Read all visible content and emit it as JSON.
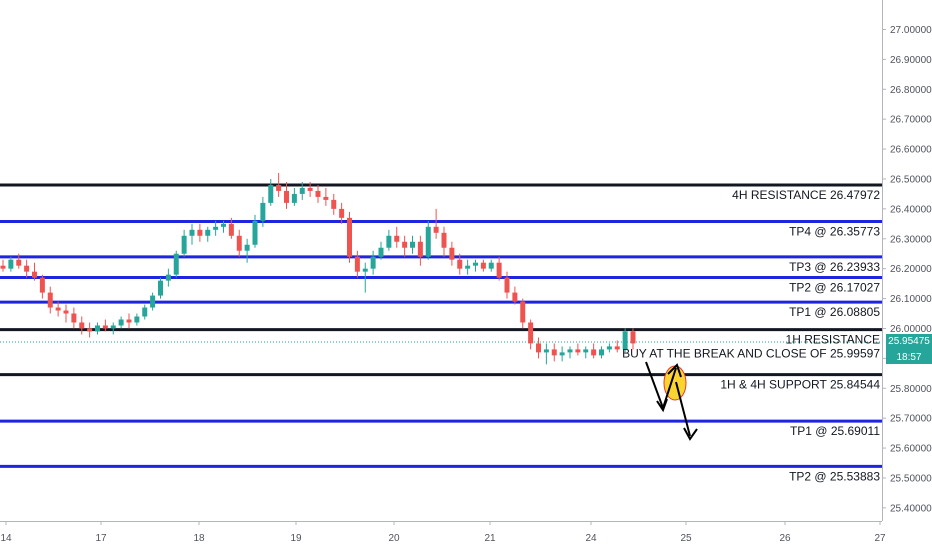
{
  "chart_data": {
    "type": "candlestick",
    "y_axis": {
      "range": [
        25.38,
        27.02
      ],
      "ticks": [
        "27.00000",
        "26.90000",
        "26.80000",
        "26.70000",
        "26.60000",
        "26.50000",
        "26.40000",
        "26.30000",
        "26.20000",
        "26.10000",
        "26.00000",
        "25.90000",
        "25.80000",
        "25.70000",
        "25.60000",
        "25.50000",
        "25.40000"
      ]
    },
    "x_axis": {
      "ticks": [
        "14",
        "17",
        "18",
        "19",
        "20",
        "21",
        "24",
        "25",
        "26",
        "27"
      ]
    },
    "current_price": {
      "label": "25.95475",
      "value": 25.95475,
      "countdown": "18:57",
      "color": "#26a69a"
    },
    "levels": [
      {
        "value": 26.47972,
        "color": "#131722",
        "label": "4H RESISTANCE 26.47972"
      },
      {
        "value": 26.35773,
        "color": "#1f24e0",
        "label": "TP4 @ 26.35773"
      },
      {
        "value": 26.23933,
        "color": "#1f24e0",
        "label": "TP3 @ 26.23933"
      },
      {
        "value": 26.17027,
        "color": "#1f24e0",
        "label": "TP2 @ 26.17027"
      },
      {
        "value": 26.08805,
        "color": "#1f24e0",
        "label": "TP1 @ 26.08805"
      },
      {
        "value": 25.99597,
        "color": "#131722",
        "label": "1H RESISTANCE"
      },
      {
        "value": 25.84544,
        "color": "#131722",
        "label": "1H & 4H SUPPORT 25.84544"
      },
      {
        "value": 25.69011,
        "color": "#1f24e0",
        "label": "TP1 @ 25.69011"
      },
      {
        "value": 25.53883,
        "color": "#1f24e0",
        "label": "TP2 @ 25.53883"
      }
    ],
    "annotations": [
      "BUY AT THE BREAK AND CLOSE OF 25.99597"
    ],
    "colors": {
      "up": "#26a69a",
      "down": "#ef5350",
      "axis_text": "#50535e"
    },
    "candles": [
      [
        26.21,
        26.23,
        26.19,
        26.2
      ],
      [
        26.2,
        26.24,
        26.19,
        26.23
      ],
      [
        26.23,
        26.25,
        26.2,
        26.21
      ],
      [
        26.21,
        26.23,
        26.17,
        26.19
      ],
      [
        26.19,
        26.22,
        26.16,
        26.17
      ],
      [
        26.17,
        26.18,
        26.1,
        26.12
      ],
      [
        26.12,
        26.14,
        26.05,
        26.07
      ],
      [
        26.07,
        26.09,
        26.04,
        26.06
      ],
      [
        26.06,
        26.08,
        26.02,
        26.05
      ],
      [
        26.05,
        26.07,
        26.0,
        26.02
      ],
      [
        26.02,
        26.04,
        25.98,
        26.0
      ],
      [
        26.0,
        26.02,
        25.97,
        25.99
      ],
      [
        25.99,
        26.02,
        25.98,
        26.01
      ],
      [
        26.01,
        26.03,
        25.99,
        26.0
      ],
      [
        26.0,
        26.02,
        25.98,
        26.01
      ],
      [
        26.01,
        26.04,
        26.0,
        26.03
      ],
      [
        26.03,
        26.05,
        26.0,
        26.02
      ],
      [
        26.02,
        26.05,
        26.01,
        26.04
      ],
      [
        26.04,
        26.08,
        26.03,
        26.07
      ],
      [
        26.07,
        26.12,
        26.06,
        26.11
      ],
      [
        26.11,
        26.17,
        26.1,
        26.16
      ],
      [
        26.16,
        26.2,
        26.14,
        26.18
      ],
      [
        26.18,
        26.26,
        26.17,
        26.25
      ],
      [
        26.25,
        26.33,
        26.24,
        26.31
      ],
      [
        26.31,
        26.35,
        26.28,
        26.33
      ],
      [
        26.33,
        26.35,
        26.29,
        26.31
      ],
      [
        26.31,
        26.34,
        26.29,
        26.33
      ],
      [
        26.33,
        26.36,
        26.31,
        26.34
      ],
      [
        26.34,
        26.36,
        26.32,
        26.35
      ],
      [
        26.35,
        26.37,
        26.3,
        26.31
      ],
      [
        26.31,
        26.33,
        26.24,
        26.26
      ],
      [
        26.26,
        26.3,
        26.22,
        26.28
      ],
      [
        26.28,
        26.38,
        26.27,
        26.36
      ],
      [
        26.36,
        26.44,
        26.34,
        26.42
      ],
      [
        26.42,
        26.5,
        26.41,
        26.48
      ],
      [
        26.48,
        26.52,
        26.44,
        26.46
      ],
      [
        26.46,
        26.49,
        26.4,
        26.42
      ],
      [
        26.42,
        26.47,
        26.41,
        26.45
      ],
      [
        26.45,
        26.49,
        26.43,
        26.47
      ],
      [
        26.47,
        26.49,
        26.44,
        26.46
      ],
      [
        26.46,
        26.48,
        26.42,
        26.44
      ],
      [
        26.44,
        26.47,
        26.41,
        26.43
      ],
      [
        26.43,
        26.45,
        26.38,
        26.4
      ],
      [
        26.4,
        26.42,
        26.35,
        26.37
      ],
      [
        26.37,
        26.39,
        26.22,
        26.24
      ],
      [
        26.24,
        26.26,
        26.17,
        26.19
      ],
      [
        26.19,
        26.22,
        26.12,
        26.2
      ],
      [
        26.2,
        26.26,
        26.18,
        26.24
      ],
      [
        26.24,
        26.29,
        26.23,
        26.27
      ],
      [
        26.27,
        26.33,
        26.26,
        26.31
      ],
      [
        26.31,
        26.34,
        26.27,
        26.29
      ],
      [
        26.29,
        26.31,
        26.24,
        26.27
      ],
      [
        26.27,
        26.31,
        26.25,
        26.29
      ],
      [
        26.29,
        26.31,
        26.21,
        26.24
      ],
      [
        26.24,
        26.36,
        26.23,
        26.34
      ],
      [
        26.34,
        26.4,
        26.3,
        26.32
      ],
      [
        26.32,
        26.34,
        26.24,
        26.27
      ],
      [
        26.27,
        26.29,
        26.21,
        26.23
      ],
      [
        26.23,
        26.25,
        26.18,
        26.2
      ],
      [
        26.2,
        26.23,
        26.18,
        26.21
      ],
      [
        26.21,
        26.23,
        26.19,
        26.22
      ],
      [
        26.22,
        26.23,
        26.19,
        26.2
      ],
      [
        26.2,
        26.23,
        26.19,
        26.22
      ],
      [
        26.22,
        26.24,
        26.16,
        26.17
      ],
      [
        26.17,
        26.19,
        26.1,
        26.12
      ],
      [
        26.12,
        26.14,
        26.08,
        26.09
      ],
      [
        26.09,
        26.1,
        26.0,
        26.02
      ],
      [
        26.02,
        26.03,
        25.93,
        25.95
      ],
      [
        25.95,
        25.97,
        25.9,
        25.92
      ],
      [
        25.92,
        25.95,
        25.88,
        25.93
      ],
      [
        25.93,
        25.95,
        25.89,
        25.91
      ],
      [
        25.91,
        25.94,
        25.89,
        25.92
      ],
      [
        25.92,
        25.94,
        25.9,
        25.93
      ],
      [
        25.93,
        25.95,
        25.91,
        25.92
      ],
      [
        25.92,
        25.94,
        25.9,
        25.93
      ],
      [
        25.93,
        25.95,
        25.9,
        25.91
      ],
      [
        25.91,
        25.94,
        25.9,
        25.93
      ],
      [
        25.93,
        25.95,
        25.92,
        25.94
      ],
      [
        25.94,
        25.96,
        25.92,
        25.93
      ],
      [
        25.93,
        26.0,
        25.92,
        25.99
      ],
      [
        25.99,
        26.0,
        25.93,
        25.95
      ]
    ]
  }
}
